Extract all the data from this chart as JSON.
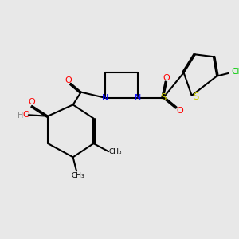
{
  "background_color": "#e8e8e8",
  "fig_size": [
    3.0,
    3.0
  ],
  "dpi": 100,
  "atoms": {
    "colors": {
      "C": "#000000",
      "N": "#0000ff",
      "O": "#ff0000",
      "S": "#cccc00",
      "Cl": "#00cc00",
      "H": "#888888"
    }
  },
  "bond_color": "#000000",
  "bond_width": 1.5
}
